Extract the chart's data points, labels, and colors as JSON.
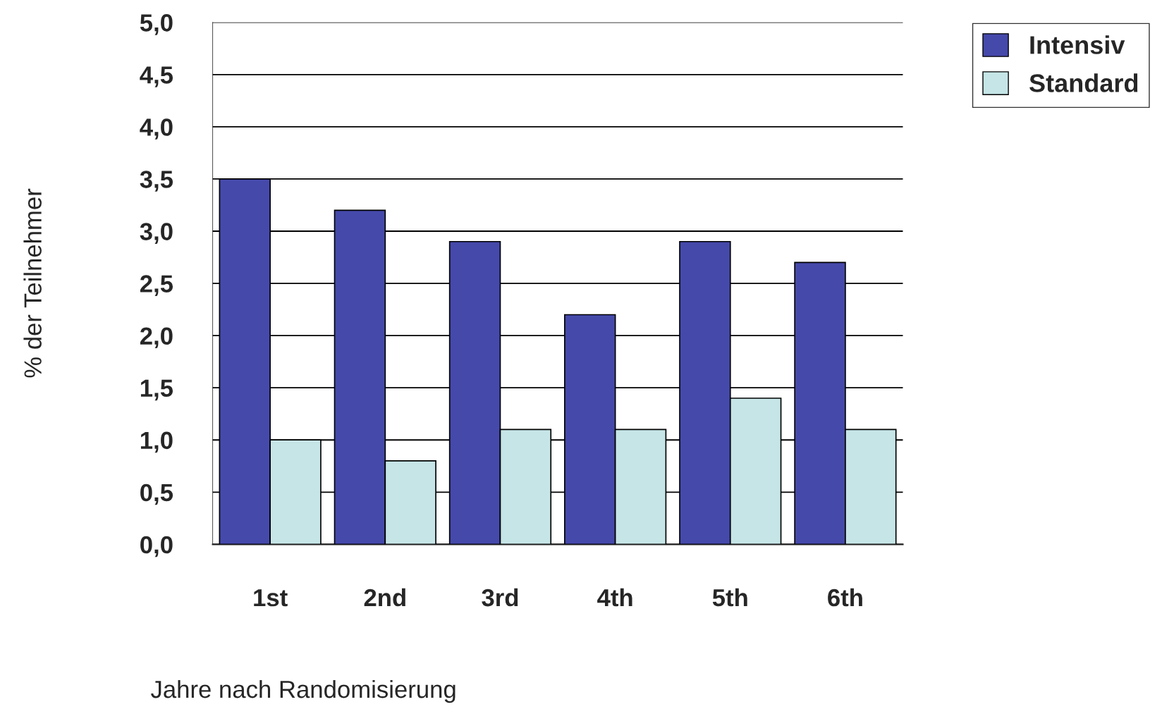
{
  "chart_data": {
    "type": "bar",
    "xlabel": "Jahre nach Randomisierung",
    "ylabel": "% der Teilnehmer",
    "categories": [
      "1st",
      "2nd",
      "3rd",
      "4th",
      "5th",
      "6th"
    ],
    "series": [
      {
        "name": "Intensiv",
        "color": "#4549a9",
        "values": [
          3.5,
          3.2,
          2.9,
          2.2,
          2.9,
          2.7
        ]
      },
      {
        "name": "Standard",
        "color": "#c5e5e6",
        "values": [
          1.0,
          0.8,
          1.1,
          1.1,
          1.4,
          1.1
        ]
      }
    ],
    "ylim": [
      0,
      5
    ],
    "yticks": [
      {
        "value": 0,
        "label": "0,0"
      },
      {
        "value": 0.5,
        "label": "0,5"
      },
      {
        "value": 1,
        "label": "1,0"
      },
      {
        "value": 1.5,
        "label": "1,5"
      },
      {
        "value": 2,
        "label": "2,0"
      },
      {
        "value": 2.5,
        "label": "2,5"
      },
      {
        "value": 3,
        "label": "3,0"
      },
      {
        "value": 3.5,
        "label": "3,5"
      },
      {
        "value": 4,
        "label": "4,0"
      },
      {
        "value": 4.5,
        "label": "4,5"
      },
      {
        "value": 5,
        "label": "5,0"
      }
    ],
    "grid": "y",
    "legend": "top right"
  }
}
